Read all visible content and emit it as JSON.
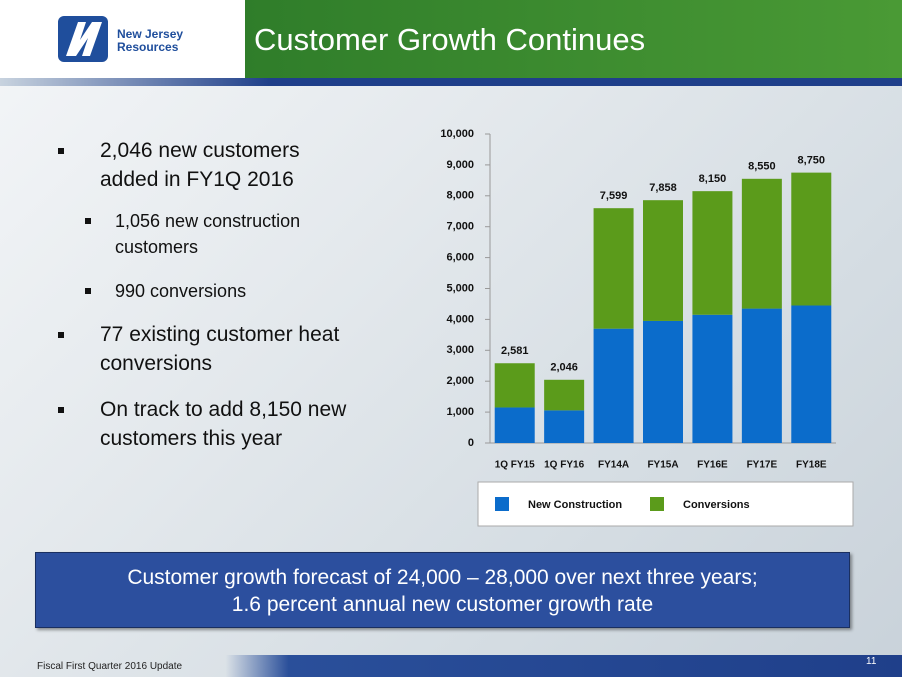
{
  "header": {
    "logo_lines": [
      "New Jersey",
      "Resources"
    ],
    "title": "Customer Growth Continues"
  },
  "bullets": [
    {
      "level": 1,
      "lines": [
        "2,046 new customers",
        "added in FY1Q 2016"
      ]
    },
    {
      "level": 2,
      "lines": [
        "1,056 new construction",
        "customers"
      ]
    },
    {
      "level": 2,
      "lines": [
        "990 conversions"
      ]
    },
    {
      "level": 1,
      "lines": [
        "77 existing customer heat",
        "conversions"
      ]
    },
    {
      "level": 1,
      "lines": [
        "On track to add 8,150 new",
        "customers this year"
      ]
    }
  ],
  "chart_data": {
    "type": "stacked_bar",
    "categories": [
      "1Q FY15",
      "1Q FY16",
      "FY14A",
      "FY15A",
      "FY16E",
      "FY17E",
      "FY18E"
    ],
    "series": [
      {
        "name": "New Construction",
        "color": "#0b6ccb",
        "values": [
          1150,
          1056,
          3700,
          3950,
          4150,
          4350,
          4450
        ]
      },
      {
        "name": "Conversions",
        "color": "#5b9b1b",
        "values": [
          1431,
          990,
          3899,
          3908,
          4000,
          4200,
          4300
        ]
      }
    ],
    "totals": [
      2581,
      2046,
      7599,
      7858,
      8150,
      8550,
      8750
    ],
    "total_labels": [
      "2,581",
      "2,046",
      "7,599",
      "7,858",
      "8,150",
      "8,550",
      "8,750"
    ],
    "ylim": [
      0,
      10000
    ],
    "yticks": [
      0,
      {
        "value": 1000,
        "label": "1,000"
      },
      {
        "value": 2000,
        "label": "2,000"
      },
      {
        "value": 3000,
        "label": "3,000"
      },
      {
        "value": 4000,
        "label": "4,000"
      },
      {
        "value": 5000,
        "label": "5,000"
      },
      {
        "value": 6000,
        "label": "6,000"
      },
      {
        "value": 7000,
        "label": "7,000"
      },
      {
        "value": 8000,
        "label": "8,000"
      },
      {
        "value": 9000,
        "label": "9,000"
      },
      {
        "value": 10000,
        "label": "10,000"
      }
    ],
    "grid": false
  },
  "callout": {
    "lines": [
      "Customer growth forecast of 24,000 – 28,000 over next three years;",
      "1.6 percent annual new customer growth rate"
    ]
  },
  "footer": {
    "text": "Fiscal First Quarter 2016 Update",
    "page_number": "11"
  }
}
